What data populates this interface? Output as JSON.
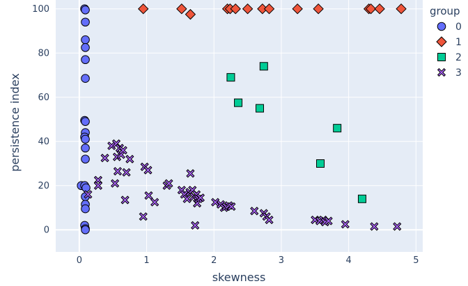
{
  "chart_data": {
    "type": "scatter",
    "xlabel": "skewness",
    "ylabel": "persistence index",
    "xlim": [
      -0.35,
      5.1
    ],
    "ylim": [
      -10,
      104
    ],
    "x_ticks": [
      0,
      1,
      2,
      3,
      4,
      5
    ],
    "y_ticks": [
      0,
      20,
      40,
      60,
      80,
      100
    ],
    "grid": true,
    "legend": {
      "title": "group",
      "placement": "top-right"
    },
    "series": [
      {
        "name": "0",
        "marker": "circle",
        "color": "#636efa",
        "points": [
          [
            0.08,
            100
          ],
          [
            0.09,
            99.5
          ],
          [
            0.09,
            94
          ],
          [
            0.09,
            86
          ],
          [
            0.09,
            82.5
          ],
          [
            0.09,
            77
          ],
          [
            0.09,
            68.5
          ],
          [
            0.08,
            49.5
          ],
          [
            0.09,
            49
          ],
          [
            0.09,
            44
          ],
          [
            0.08,
            42
          ],
          [
            0.09,
            41
          ],
          [
            0.09,
            37
          ],
          [
            0.09,
            32
          ],
          [
            0.03,
            20
          ],
          [
            0.08,
            20
          ],
          [
            0.1,
            19
          ],
          [
            0.09,
            15
          ],
          [
            0.09,
            11.5
          ],
          [
            0.09,
            9.5
          ],
          [
            0.08,
            2
          ],
          [
            0.09,
            0.5
          ],
          [
            0.09,
            0
          ]
        ]
      },
      {
        "name": "1",
        "marker": "diamond",
        "color": "#ef553b",
        "points": [
          [
            0.95,
            100
          ],
          [
            1.52,
            100
          ],
          [
            1.65,
            97.5
          ],
          [
            2.2,
            100
          ],
          [
            2.24,
            100
          ],
          [
            2.32,
            100
          ],
          [
            2.5,
            100
          ],
          [
            2.72,
            100
          ],
          [
            2.82,
            100
          ],
          [
            3.24,
            100
          ],
          [
            3.55,
            100
          ],
          [
            4.3,
            100
          ],
          [
            4.33,
            100
          ],
          [
            4.46,
            100
          ],
          [
            4.78,
            100
          ]
        ]
      },
      {
        "name": "2",
        "marker": "square",
        "color": "#00cc96",
        "points": [
          [
            2.25,
            69
          ],
          [
            2.36,
            57.5
          ],
          [
            2.68,
            55
          ],
          [
            2.74,
            74
          ],
          [
            3.58,
            30
          ],
          [
            3.83,
            46
          ],
          [
            4.2,
            14
          ]
        ]
      },
      {
        "name": "3",
        "marker": "x",
        "color": "#ab63fa",
        "points": [
          [
            0.13,
            16
          ],
          [
            0.28,
            22.5
          ],
          [
            0.28,
            20
          ],
          [
            0.38,
            32.5
          ],
          [
            0.48,
            38
          ],
          [
            0.53,
            21
          ],
          [
            0.55,
            39
          ],
          [
            0.56,
            33
          ],
          [
            0.57,
            26.5
          ],
          [
            0.6,
            37
          ],
          [
            0.62,
            34
          ],
          [
            0.65,
            36
          ],
          [
            0.68,
            13.5
          ],
          [
            0.7,
            26
          ],
          [
            0.75,
            32
          ],
          [
            0.95,
            6
          ],
          [
            0.97,
            28.5
          ],
          [
            1.02,
            27
          ],
          [
            1.03,
            15.5
          ],
          [
            1.12,
            12.5
          ],
          [
            1.3,
            20
          ],
          [
            1.33,
            21
          ],
          [
            1.52,
            18
          ],
          [
            1.56,
            16
          ],
          [
            1.6,
            14
          ],
          [
            1.64,
            17
          ],
          [
            1.65,
            25.5
          ],
          [
            1.68,
            18
          ],
          [
            1.7,
            15
          ],
          [
            1.72,
            2
          ],
          [
            1.74,
            16
          ],
          [
            1.75,
            12
          ],
          [
            1.77,
            14
          ],
          [
            1.8,
            14.5
          ],
          [
            2.02,
            12.5
          ],
          [
            2.1,
            11.5
          ],
          [
            2.15,
            10
          ],
          [
            2.18,
            10.5
          ],
          [
            2.22,
            11
          ],
          [
            2.26,
            10.5
          ],
          [
            2.6,
            8.5
          ],
          [
            2.74,
            7.5
          ],
          [
            2.78,
            6
          ],
          [
            2.82,
            4.5
          ],
          [
            3.5,
            4.5
          ],
          [
            3.57,
            4
          ],
          [
            3.62,
            4.5
          ],
          [
            3.65,
            3.5
          ],
          [
            3.7,
            4
          ],
          [
            3.95,
            2.5
          ],
          [
            4.38,
            1.5
          ],
          [
            4.72,
            1.5
          ]
        ]
      }
    ]
  }
}
